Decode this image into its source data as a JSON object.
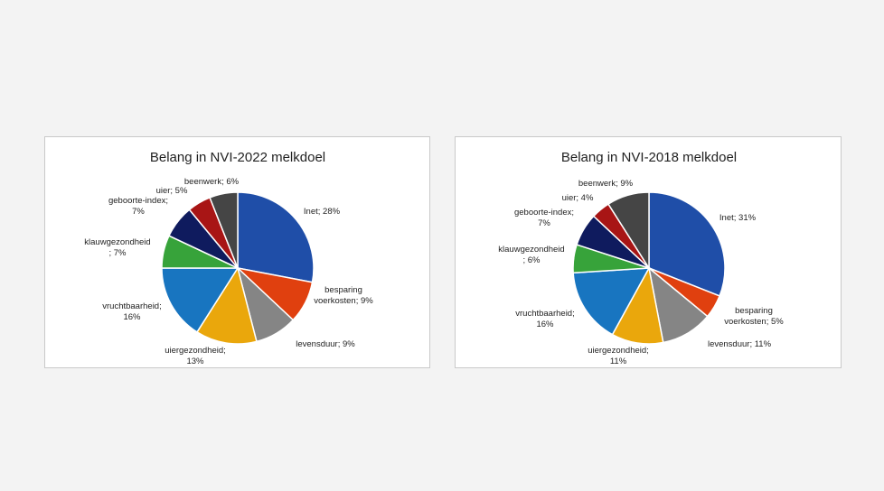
{
  "chart_data": [
    {
      "type": "pie",
      "title": "Belang in NVI-2022 melkdoel",
      "slices": [
        {
          "label": "Inet; 28%",
          "value": 28,
          "color": "#1f4ea8"
        },
        {
          "label": "besparing voerkosten; 9%",
          "value": 9,
          "color": "#e0400f"
        },
        {
          "label": "levensduur; 9%",
          "value": 9,
          "color": "#858585"
        },
        {
          "label": "uiergezondheid; 13%",
          "value": 13,
          "color": "#eaa70c"
        },
        {
          "label": "vruchtbaarheid; 16%",
          "value": 16,
          "color": "#1875c0"
        },
        {
          "label": "klauwgezondheid ; 7%",
          "value": 7,
          "color": "#37a33a"
        },
        {
          "label": "geboorte-index; 7%",
          "value": 7,
          "color": "#0f1b5e"
        },
        {
          "label": "uier; 5%",
          "value": 5,
          "color": "#a81515"
        },
        {
          "label": "beenwerk; 6%",
          "value": 6,
          "color": "#454545"
        }
      ]
    },
    {
      "type": "pie",
      "title": "Belang in NVI-2018 melkdoel",
      "slices": [
        {
          "label": "Inet; 31%",
          "value": 31,
          "color": "#1f4ea8"
        },
        {
          "label": "besparing voerkosten; 5%",
          "value": 5,
          "color": "#e0400f"
        },
        {
          "label": "levensduur; 11%",
          "value": 11,
          "color": "#858585"
        },
        {
          "label": "uiergezondheid; 11%",
          "value": 11,
          "color": "#eaa70c"
        },
        {
          "label": "vruchtbaarheid; 16%",
          "value": 16,
          "color": "#1875c0"
        },
        {
          "label": "klauwgezondheid ; 6%",
          "value": 6,
          "color": "#37a33a"
        },
        {
          "label": "geboorte-index; 7%",
          "value": 7,
          "color": "#0f1b5e"
        },
        {
          "label": "uier; 4%",
          "value": 4,
          "color": "#a81515"
        },
        {
          "label": "beenwerk; 9%",
          "value": 9,
          "color": "#454545"
        }
      ]
    }
  ]
}
